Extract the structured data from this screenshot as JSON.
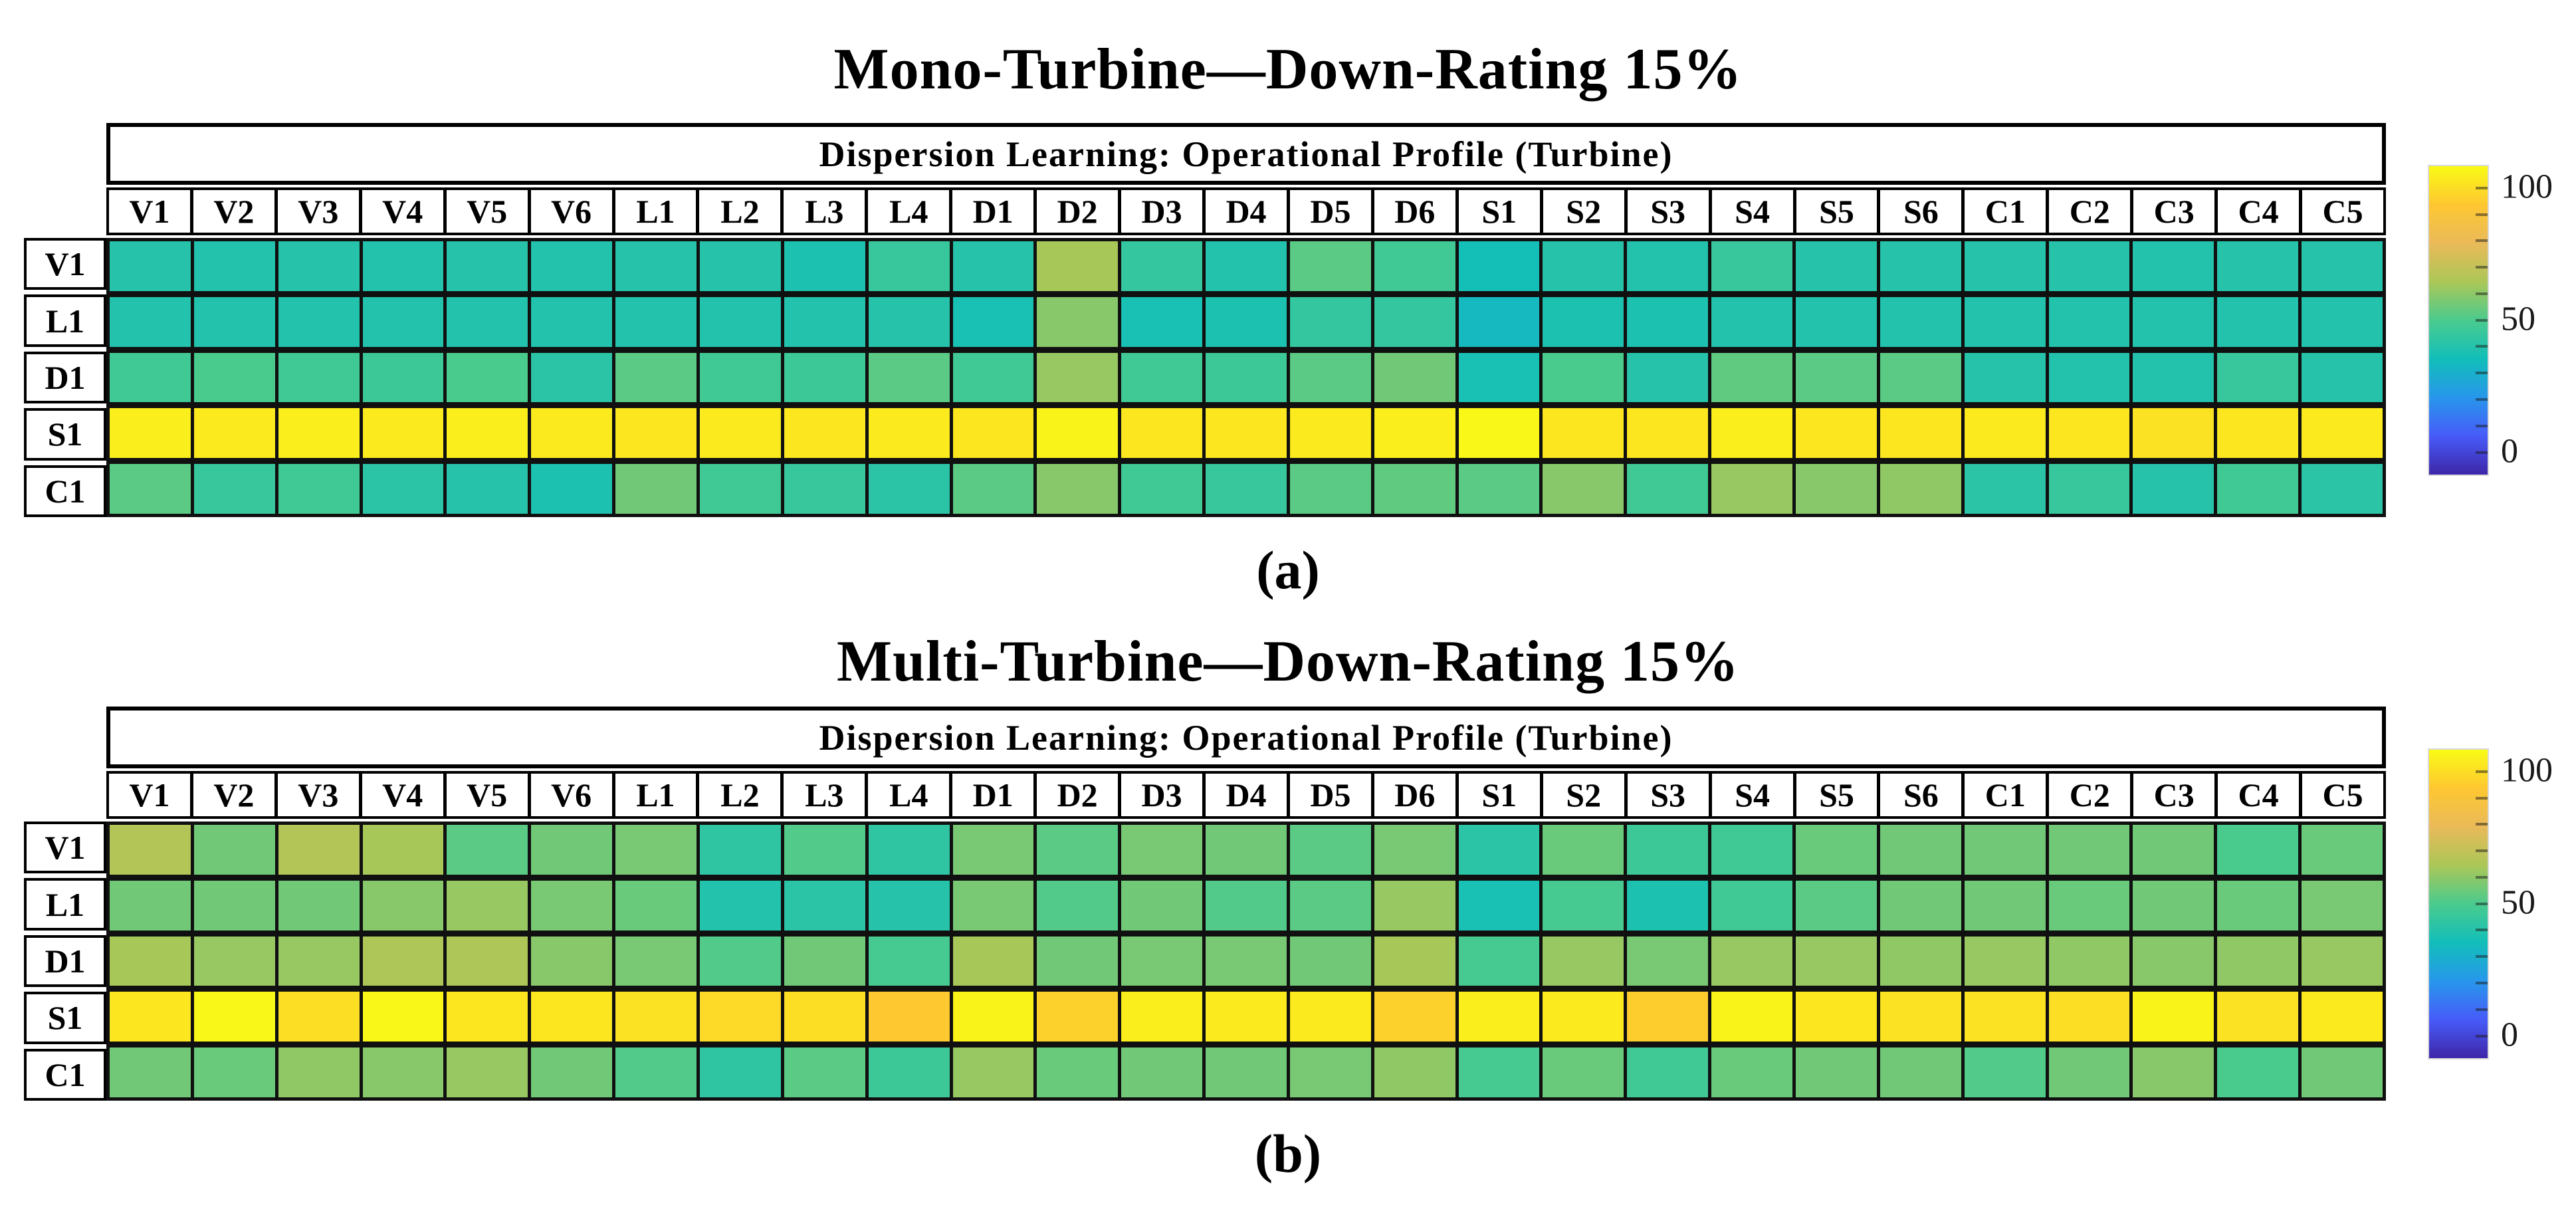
{
  "colorbar": {
    "min": 0,
    "max": 100,
    "ticks": [
      {
        "value": 100,
        "label": "100"
      },
      {
        "value": 50,
        "label": "50"
      },
      {
        "value": 0,
        "label": "0"
      }
    ]
  },
  "chart_data": [
    {
      "id": "a",
      "type": "heatmap",
      "title": "Mono-Turbine—Down-Rating 15%",
      "caption_label": "(a)",
      "header": "Dispersion Learning: Operational Profile  (Turbine)",
      "colormap": "parula",
      "value_range": [
        0,
        100
      ],
      "legend_position": "right",
      "x_labels": [
        "V1",
        "V2",
        "V3",
        "V4",
        "V5",
        "V6",
        "L1",
        "L2",
        "L3",
        "L4",
        "D1",
        "D2",
        "D3",
        "D4",
        "D5",
        "D6",
        "S1",
        "S2",
        "S3",
        "S4",
        "S5",
        "S6",
        "C1",
        "C2",
        "C3",
        "C4",
        "C5"
      ],
      "y_labels": [
        "V1",
        "L1",
        "D1",
        "S1",
        "C1"
      ],
      "values": [
        [
          42,
          41,
          42,
          41,
          42,
          41,
          42,
          42,
          40,
          46,
          42,
          62,
          45,
          41,
          52,
          48,
          38,
          42,
          41,
          46,
          42,
          42,
          42,
          42,
          41,
          42,
          42
        ],
        [
          41,
          41,
          41,
          41,
          41,
          41,
          41,
          41,
          41,
          42,
          39,
          58,
          39,
          40,
          45,
          45,
          36,
          40,
          40,
          41,
          41,
          41,
          41,
          41,
          41,
          41,
          41
        ],
        [
          48,
          50,
          48,
          47,
          50,
          43,
          52,
          48,
          47,
          52,
          48,
          60,
          48,
          47,
          52,
          55,
          39,
          50,
          42,
          53,
          52,
          52,
          42,
          41,
          41,
          46,
          42
        ],
        [
          97,
          96,
          97,
          96,
          97,
          96,
          95,
          96,
          95,
          96,
          95,
          98,
          95,
          95,
          96,
          97,
          99,
          95,
          95,
          97,
          95,
          95,
          96,
          95,
          94,
          95,
          96
        ],
        [
          52,
          46,
          48,
          43,
          42,
          40,
          55,
          48,
          46,
          43,
          52,
          58,
          48,
          46,
          52,
          53,
          52,
          58,
          48,
          60,
          58,
          59,
          43,
          46,
          42,
          48,
          43
        ]
      ]
    },
    {
      "id": "b",
      "type": "heatmap",
      "title": "Multi-Turbine—Down-Rating 15%",
      "caption_label": "(b)",
      "header": "Dispersion Learning: Operational Profile  (Turbine)",
      "colormap": "parula",
      "value_range": [
        0,
        100
      ],
      "legend_position": "right",
      "x_labels": [
        "V1",
        "V2",
        "V3",
        "V4",
        "V5",
        "V6",
        "L1",
        "L2",
        "L3",
        "L4",
        "D1",
        "D2",
        "D3",
        "D4",
        "D5",
        "D6",
        "S1",
        "S2",
        "S3",
        "S4",
        "S5",
        "S6",
        "C1",
        "C2",
        "C3",
        "C4",
        "C5"
      ],
      "y_labels": [
        "V1",
        "L1",
        "D1",
        "S1",
        "C1"
      ],
      "values": [
        [
          64,
          55,
          64,
          62,
          52,
          55,
          56,
          44,
          51,
          44,
          56,
          52,
          56,
          55,
          52,
          56,
          43,
          54,
          47,
          48,
          54,
          55,
          55,
          55,
          55,
          50,
          54
        ],
        [
          55,
          55,
          55,
          58,
          60,
          56,
          54,
          41,
          43,
          42,
          56,
          51,
          55,
          51,
          52,
          60,
          39,
          49,
          40,
          48,
          52,
          55,
          55,
          54,
          55,
          54,
          56
        ],
        [
          62,
          60,
          60,
          63,
          63,
          58,
          56,
          51,
          55,
          49,
          62,
          55,
          56,
          56,
          55,
          62,
          49,
          60,
          56,
          60,
          60,
          59,
          60,
          59,
          58,
          59,
          60
        ],
        [
          95,
          99,
          93,
          99,
          95,
          95,
          94,
          92,
          93,
          88,
          98,
          90,
          97,
          96,
          96,
          90,
          97,
          96,
          89,
          98,
          95,
          94,
          94,
          93,
          98,
          94,
          96
        ],
        [
          55,
          54,
          59,
          58,
          60,
          55,
          51,
          44,
          52,
          47,
          60,
          54,
          55,
          55,
          56,
          59,
          49,
          54,
          48,
          54,
          55,
          55,
          51,
          55,
          58,
          50,
          55
        ]
      ]
    }
  ]
}
